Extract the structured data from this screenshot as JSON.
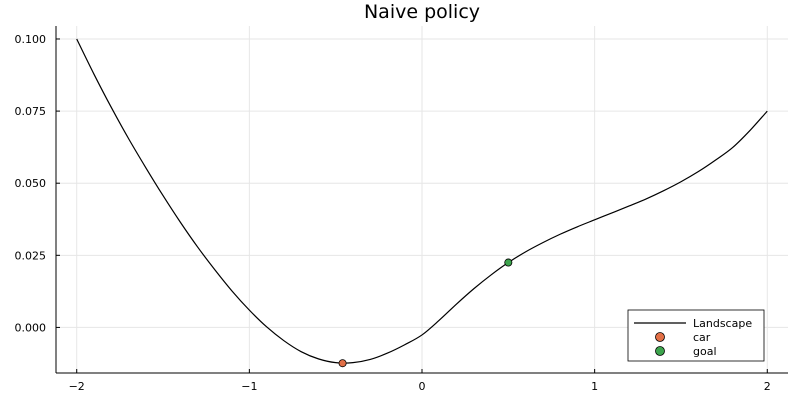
{
  "chart_data": {
    "type": "line",
    "title": "Naive policy",
    "xlabel": "",
    "ylabel": "",
    "xlim": [
      -2.12,
      2.12
    ],
    "ylim": [
      -0.0158,
      0.1045
    ],
    "grid": true,
    "legend_position": "bottom-right",
    "x_ticks": [
      -2,
      -1,
      0,
      1,
      2
    ],
    "x_tick_labels": [
      "−2",
      "−1",
      "0",
      "1",
      "2"
    ],
    "y_ticks": [
      0.0,
      0.025,
      0.05,
      0.075,
      0.1
    ],
    "y_tick_labels": [
      "0.000",
      "0.025",
      "0.050",
      "0.075",
      "0.100"
    ],
    "series": [
      {
        "name": "Landscape",
        "kind": "line",
        "color": "#000000",
        "x": [
          -2.0,
          -1.9,
          -1.8,
          -1.7,
          -1.6,
          -1.5,
          -1.4,
          -1.3,
          -1.2,
          -1.1,
          -1.0,
          -0.9,
          -0.8,
          -0.7,
          -0.6,
          -0.5,
          -0.4,
          -0.3,
          -0.2,
          -0.1,
          0.0,
          0.1,
          0.2,
          0.3,
          0.4,
          0.5,
          0.6,
          0.7,
          0.8,
          0.9,
          1.0,
          1.1,
          1.2,
          1.3,
          1.4,
          1.5,
          1.6,
          1.7,
          1.8,
          1.9,
          2.0
        ],
        "y": [
          0.1,
          0.0878,
          0.0763,
          0.0655,
          0.0554,
          0.0457,
          0.0365,
          0.0279,
          0.02,
          0.0126,
          0.006,
          0.0002,
          -0.0046,
          -0.0084,
          -0.0109,
          -0.0122,
          -0.0122,
          -0.0111,
          -0.0089,
          -0.006,
          -0.0026,
          0.0025,
          0.0081,
          0.0134,
          0.0182,
          0.0225,
          0.0262,
          0.0294,
          0.0323,
          0.0349,
          0.0373,
          0.0397,
          0.0421,
          0.0446,
          0.0474,
          0.0505,
          0.054,
          0.058,
          0.0624,
          0.0683,
          0.075
        ]
      },
      {
        "name": "car",
        "kind": "scatter",
        "color": "#e26f46",
        "x": [
          -0.46
        ],
        "y": [
          -0.0124
        ]
      },
      {
        "name": "goal",
        "kind": "scatter",
        "color": "#3da44d",
        "x": [
          0.5
        ],
        "y": [
          0.0225
        ]
      }
    ]
  }
}
